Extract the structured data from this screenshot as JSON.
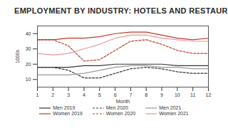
{
  "chart_data": {
    "type": "line",
    "title": "EMPLOYMENT BY INDUSTRY: HOTELS AND RESTAURANTS",
    "x_label": "Month",
    "y_label": "1000s",
    "x": [
      1,
      2,
      3,
      4,
      5,
      6,
      7,
      8,
      9,
      10,
      11,
      12
    ],
    "xlim": [
      1,
      12
    ],
    "xticks": [
      1,
      2,
      3,
      4,
      5,
      6,
      7,
      8,
      9,
      10,
      11,
      12
    ],
    "ylim": [
      5,
      45
    ],
    "yticks": [
      10,
      20,
      30,
      40
    ],
    "legend": "bottom",
    "series": [
      {
        "name": "Men 2019",
        "color": "#333333",
        "line_style": "solid",
        "values": [
          18,
          18,
          18,
          19,
          19,
          20,
          20,
          20,
          20,
          19,
          19,
          19
        ]
      },
      {
        "name": "Men 2020",
        "color": "#333333",
        "line_style": "dashed",
        "values": [
          18,
          18,
          16,
          11,
          11,
          14,
          17,
          18,
          17,
          15,
          14,
          14
        ]
      },
      {
        "name": "Men 2021",
        "color": "#999999",
        "line_style": "solid",
        "values": [
          13,
          13,
          13,
          14,
          16,
          18,
          19,
          19,
          18,
          18,
          17,
          17
        ]
      },
      {
        "name": "Women 2019",
        "color": "#c0392b",
        "line_style": "solid",
        "values": [
          36,
          36,
          37,
          37,
          38,
          40,
          41,
          41,
          39,
          37,
          36,
          37
        ]
      },
      {
        "name": "Women 2020",
        "color": "#c0392b",
        "line_style": "dashed",
        "values": [
          36,
          36,
          32,
          22,
          23,
          29,
          35,
          36,
          33,
          29,
          27,
          27
        ]
      },
      {
        "name": "Women 2021",
        "color": "#e89a9a",
        "line_style": "solid",
        "values": [
          27,
          26,
          27,
          30,
          33,
          37,
          39,
          39,
          37,
          36,
          35,
          35
        ]
      }
    ]
  }
}
